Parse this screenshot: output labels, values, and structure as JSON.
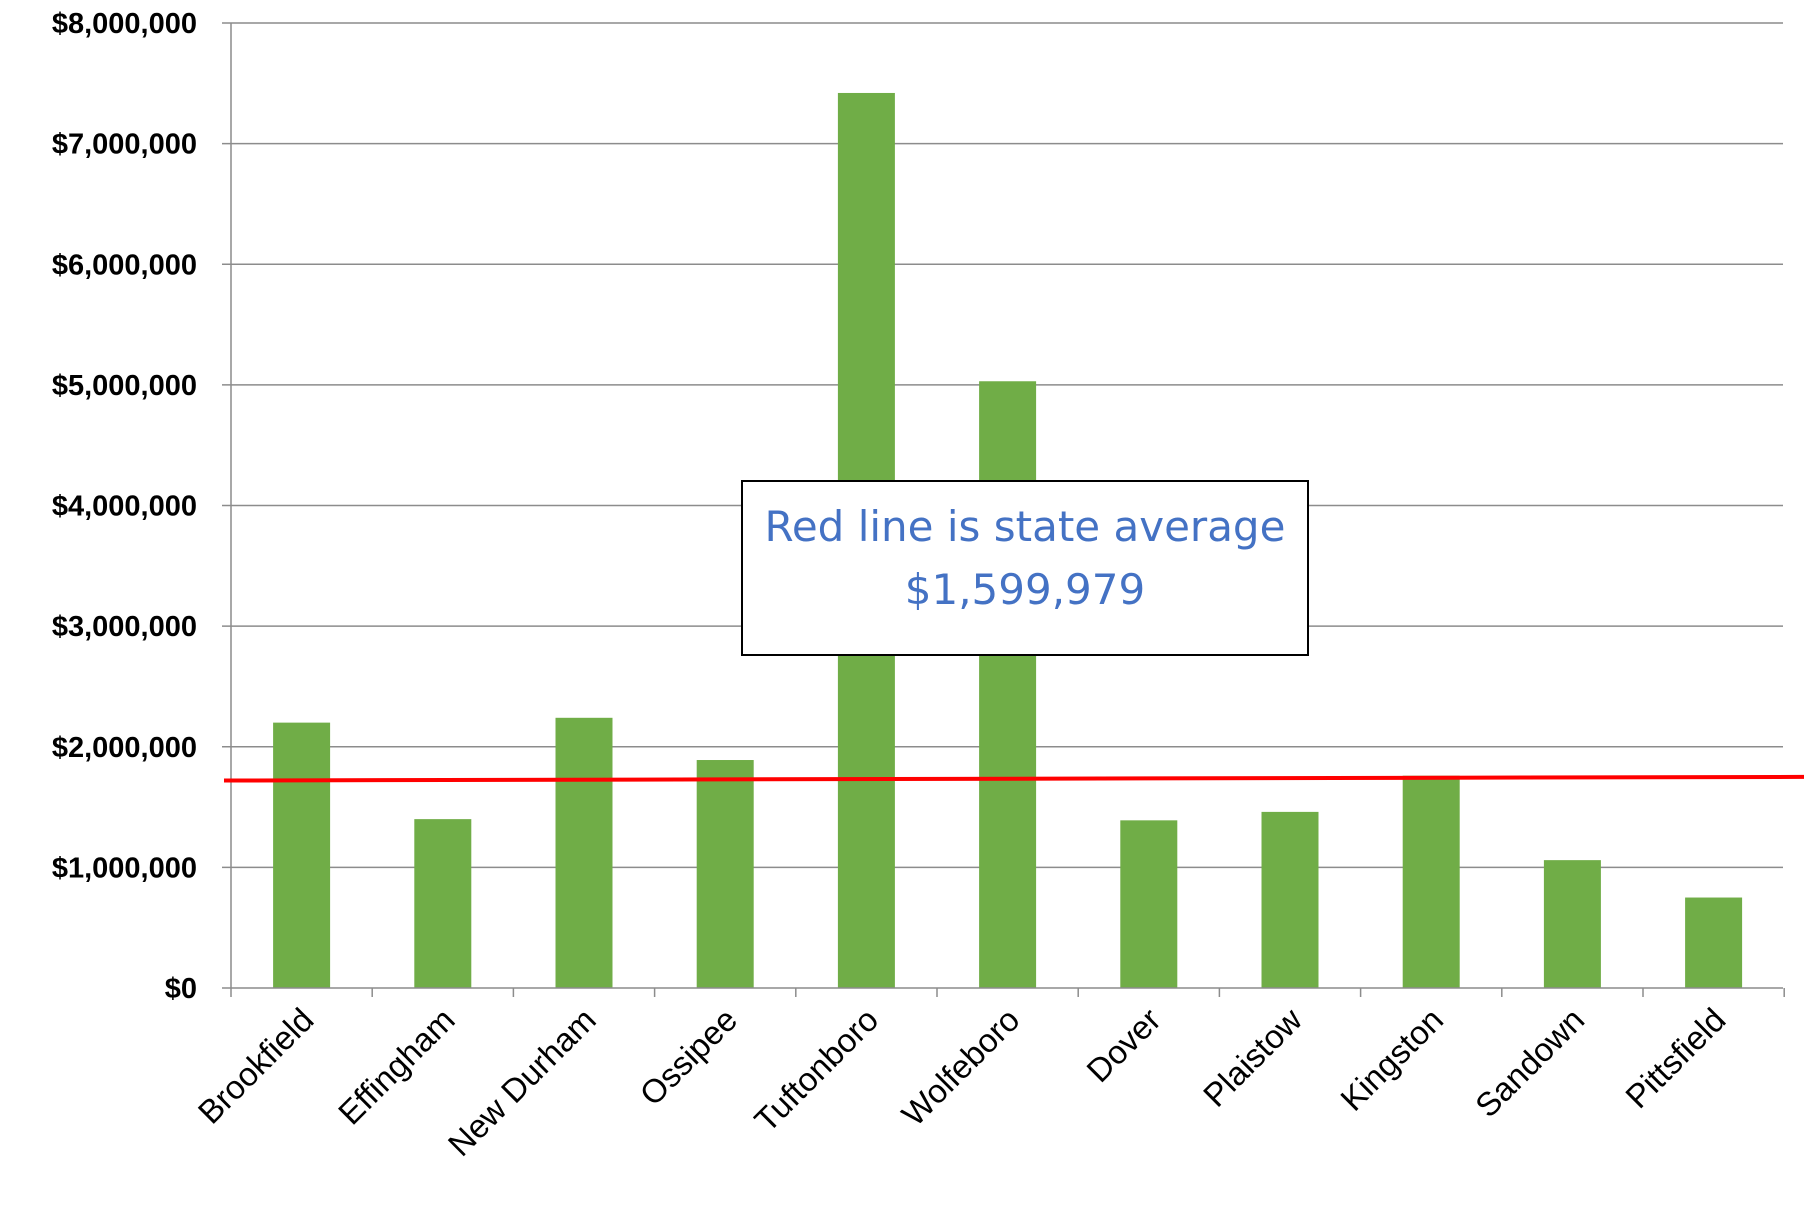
{
  "chart_data": {
    "type": "bar",
    "title": "",
    "xlabel": "",
    "ylabel": "",
    "categories": [
      "Brookfield",
      "Effingham",
      "New Durham",
      "Ossipee",
      "Tuftonboro",
      "Wolfeboro",
      "Dover",
      "Plaistow",
      "Kingston",
      "Sandown",
      "Pittsfield"
    ],
    "values": [
      2200000,
      1400000,
      2240000,
      1890000,
      7420000,
      5030000,
      1390000,
      1460000,
      1760000,
      1060000,
      750000
    ],
    "ylim": [
      0,
      8000000
    ],
    "yticks": [
      0,
      1000000,
      2000000,
      3000000,
      4000000,
      5000000,
      6000000,
      7000000,
      8000000
    ],
    "ytick_labels": [
      "$0",
      "$1,000,000",
      "$2,000,000",
      "$3,000,000",
      "$4,000,000",
      "$5,000,000",
      "$6,000,000",
      "$7,000,000",
      "$8,000,000"
    ],
    "grid": true,
    "reference_line": {
      "start_value": 1720000,
      "end_value": 1750000,
      "color": "#ff0000"
    },
    "annotation": {
      "line1": "Red line is state average",
      "line2": "$1,599,979",
      "color": "#4472c4"
    },
    "bar_color": "#70ad47"
  }
}
